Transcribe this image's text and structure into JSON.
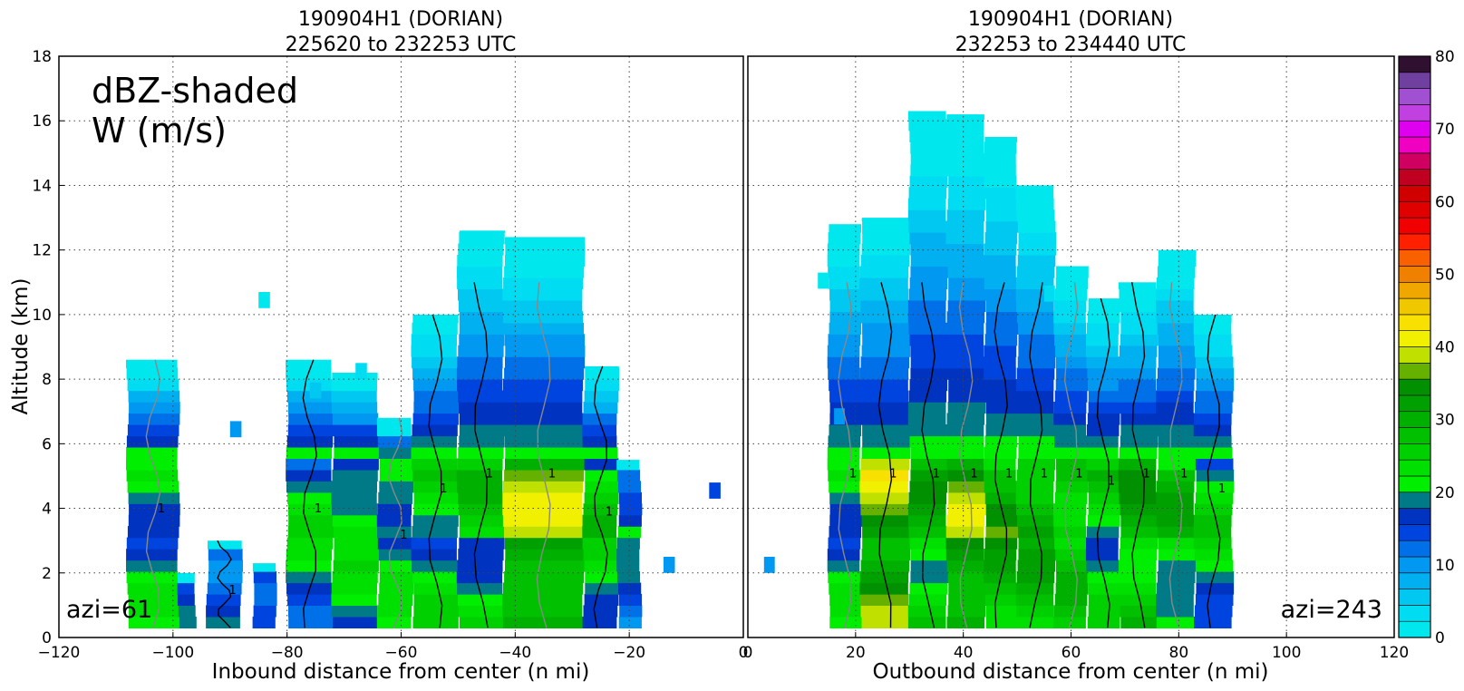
{
  "chart_data": [
    {
      "type": "heatmap",
      "panel": "left",
      "title": "190904H1 (DORIAN)",
      "subtitle": "225620 to 232253 UTC",
      "xlabel": "Inbound distance from center (n mi)",
      "ylabel": "Altitude (km)",
      "xlim": [
        -120,
        0
      ],
      "ylim": [
        0,
        18
      ],
      "xticks": [
        "−120",
        "−100",
        "−80",
        "−60",
        "−40",
        "−20",
        "0"
      ],
      "yticks": [
        "0",
        "2",
        "4",
        "6",
        "8",
        "10",
        "12",
        "14",
        "16",
        "18"
      ],
      "grid": true,
      "annotations": {
        "shading": "dBZ-shaded",
        "contours": "W (m/s)",
        "azimuth": "azi=61"
      },
      "contour_label": "1",
      "columns": [
        {
          "x0": -108,
          "x1": -99,
          "base": 0.3,
          "top": 8.6,
          "core": 24
        },
        {
          "x0": -99,
          "x1": -96,
          "base": 0.3,
          "top": 2.0,
          "core": 20
        },
        {
          "x0": -94,
          "x1": -88,
          "base": 0.3,
          "top": 3.0,
          "core": 22
        },
        {
          "x0": -86,
          "x1": -82,
          "base": 0.3,
          "top": 2.3,
          "core": 24
        },
        {
          "x0": -80,
          "x1": -72,
          "base": 0.3,
          "top": 8.6,
          "core": 24
        },
        {
          "x0": -72,
          "x1": -64,
          "base": 0.3,
          "top": 8.2,
          "core": 26
        },
        {
          "x0": -64,
          "x1": -58,
          "base": 0.3,
          "top": 6.8,
          "core": 25
        },
        {
          "x0": -58,
          "x1": -50,
          "base": 0.3,
          "top": 10.0,
          "core": 27
        },
        {
          "x0": -50,
          "x1": -42,
          "base": 0.3,
          "top": 12.6,
          "core": 28
        },
        {
          "x0": -42,
          "x1": -28,
          "base": 0.3,
          "top": 12.4,
          "core": 40
        },
        {
          "x0": -28,
          "x1": -22,
          "base": 0.3,
          "top": 8.4,
          "core": 28
        },
        {
          "x0": -22,
          "x1": -18,
          "base": 0.3,
          "top": 5.5,
          "core": 20
        }
      ],
      "isolated_echoes": [
        {
          "x": -85,
          "y": 10.2,
          "dbz": 2
        },
        {
          "x": -76,
          "y": 7.4,
          "dbz": 6
        },
        {
          "x": -90,
          "y": 6.2,
          "dbz": 10
        },
        {
          "x": -14,
          "y": 2.0,
          "dbz": 10
        },
        {
          "x": -6,
          "y": 4.3,
          "dbz": 16
        },
        {
          "x": -68,
          "y": 8.0,
          "dbz": 4
        }
      ]
    },
    {
      "type": "heatmap",
      "panel": "right",
      "title": "190904H1 (DORIAN)",
      "subtitle": "232253 to 234440 UTC",
      "xlabel": "Outbound distance from center (n mi)",
      "ylabel": "",
      "xlim": [
        0,
        120
      ],
      "ylim": [
        0,
        18
      ],
      "xticks": [
        "0",
        "20",
        "40",
        "60",
        "80",
        "100",
        "120"
      ],
      "yticks": [],
      "grid": true,
      "annotations": {
        "azimuth": "azi=243"
      },
      "contour_label": "1",
      "columns": [
        {
          "x0": 15,
          "x1": 21,
          "base": 0.3,
          "top": 12.8,
          "core": 24
        },
        {
          "x0": 21,
          "x1": 30,
          "base": 0.3,
          "top": 13.0,
          "core": 42
        },
        {
          "x0": 30,
          "x1": 37,
          "base": 0.3,
          "top": 16.3,
          "core": 32
        },
        {
          "x0": 37,
          "x1": 44,
          "base": 0.3,
          "top": 16.2,
          "core": 40
        },
        {
          "x0": 44,
          "x1": 50,
          "base": 0.3,
          "top": 15.5,
          "core": 36
        },
        {
          "x0": 50,
          "x1": 57,
          "base": 0.3,
          "top": 14.0,
          "core": 35
        },
        {
          "x0": 57,
          "x1": 63,
          "base": 0.3,
          "top": 11.5,
          "core": 32
        },
        {
          "x0": 63,
          "x1": 69,
          "base": 0.3,
          "top": 10.5,
          "core": 28
        },
        {
          "x0": 69,
          "x1": 76,
          "base": 0.3,
          "top": 11.0,
          "core": 34
        },
        {
          "x0": 76,
          "x1": 83,
          "base": 0.3,
          "top": 12.0,
          "core": 30
        },
        {
          "x0": 83,
          "x1": 90,
          "base": 0.3,
          "top": 10.0,
          "core": 26
        }
      ],
      "isolated_echoes": [
        {
          "x": 3,
          "y": 2.0,
          "dbz": 12
        },
        {
          "x": 16,
          "y": 6.6,
          "dbz": 10
        },
        {
          "x": 13,
          "y": 10.8,
          "dbz": 2
        },
        {
          "x": 55,
          "y": 10.4,
          "dbz": 4
        }
      ]
    }
  ],
  "colorbar": {
    "label": "dBZ",
    "min": 0,
    "max": 80,
    "step": 2.5,
    "ticks": [
      "0",
      "10",
      "20",
      "30",
      "40",
      "50",
      "60",
      "70",
      "80"
    ],
    "colors": [
      "#00e7ee",
      "#00ddf3",
      "#00c8f0",
      "#00b0f0",
      "#0098f0",
      "#0070e8",
      "#0044e0",
      "#0033c0",
      "#007a86",
      "#00ee00",
      "#00e000",
      "#00d000",
      "#00c000",
      "#00b000",
      "#00a000",
      "#009000",
      "#66b000",
      "#c0e000",
      "#f0f000",
      "#f8e000",
      "#f0c800",
      "#f0a800",
      "#f08000",
      "#f86000",
      "#ff2000",
      "#f00000",
      "#e00000",
      "#d00000",
      "#c00020",
      "#d00060",
      "#f000c0",
      "#e000f0",
      "#c040e0",
      "#a050d0",
      "#7040a0",
      "#301030"
    ]
  }
}
